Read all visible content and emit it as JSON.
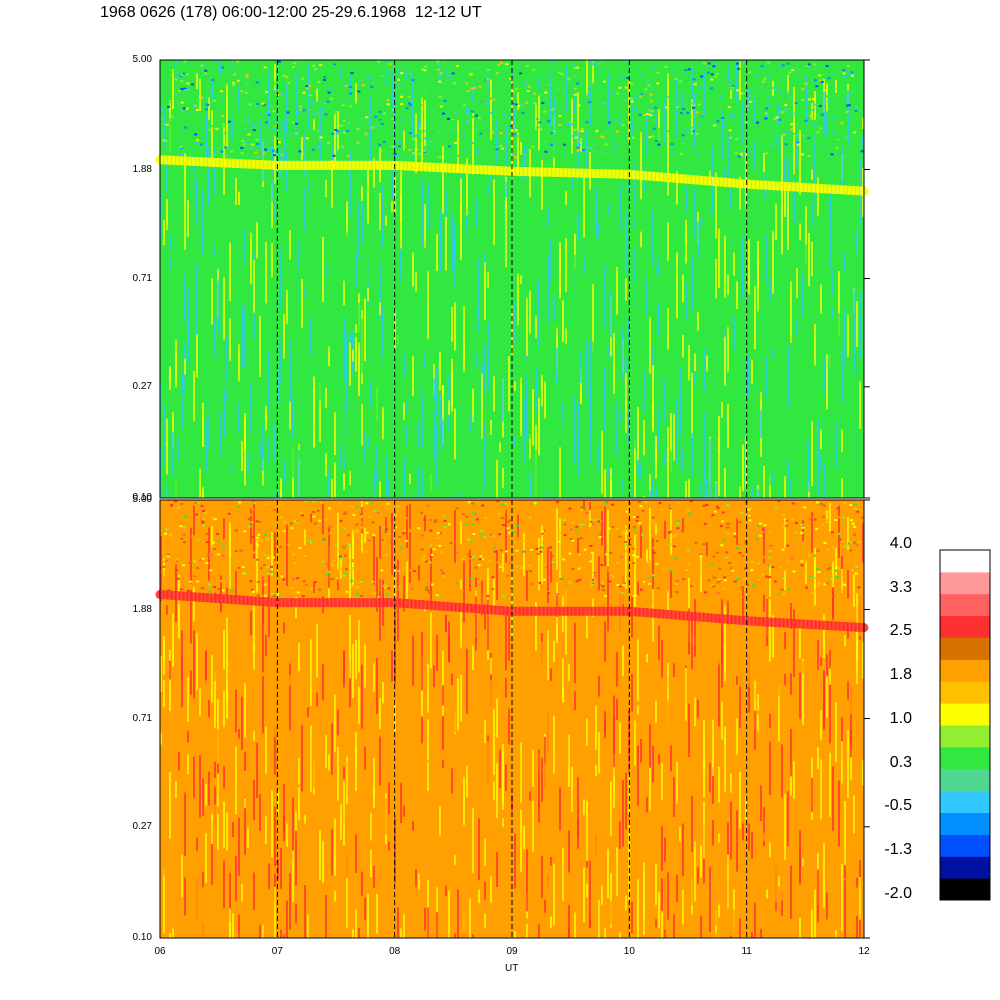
{
  "chart_data": {
    "type": "heatmap",
    "title": "1968 0626 (178) 06:00-12:00 25-29.6.1968  12-12 UT",
    "xlabel": "UT",
    "x_ticks": [
      "06",
      "07",
      "08",
      "09",
      "10",
      "11",
      "12"
    ],
    "x_range": [
      6,
      12
    ],
    "panels": [
      {
        "name": "upper",
        "y_ticks": [
          "0.10",
          "0.27",
          "0.71",
          "1.88",
          "5.00"
        ],
        "ylim": [
          0.1,
          5.0
        ],
        "y_scale": "log",
        "dominant_levels": [
          0.3,
          1.0,
          -0.5
        ],
        "band_ridge": [
          {
            "x": 6.0,
            "y": 2.05,
            "level": 1.0
          },
          {
            "x": 7.0,
            "y": 1.95,
            "level": 1.0
          },
          {
            "x": 8.0,
            "y": 1.95,
            "level": 1.0
          },
          {
            "x": 9.0,
            "y": 1.85,
            "level": 1.0
          },
          {
            "x": 10.0,
            "y": 1.8,
            "level": 1.0
          },
          {
            "x": 11.0,
            "y": 1.65,
            "level": 1.0
          },
          {
            "x": 12.0,
            "y": 1.55,
            "level": 1.0
          }
        ]
      },
      {
        "name": "lower",
        "y_ticks": [
          "0.10",
          "0.27",
          "0.71",
          "1.88",
          "5.00"
        ],
        "ylim": [
          0.1,
          5.0
        ],
        "y_scale": "log",
        "dominant_levels": [
          1.8,
          1.0,
          2.5
        ],
        "band_ridge": [
          {
            "x": 6.0,
            "y": 2.15,
            "level": 2.5
          },
          {
            "x": 7.0,
            "y": 2.0,
            "level": 2.5
          },
          {
            "x": 8.0,
            "y": 2.0,
            "level": 2.5
          },
          {
            "x": 9.0,
            "y": 1.85,
            "level": 2.5
          },
          {
            "x": 10.0,
            "y": 1.85,
            "level": 2.5
          },
          {
            "x": 11.0,
            "y": 1.7,
            "level": 2.5
          },
          {
            "x": 12.0,
            "y": 1.6,
            "level": 2.5
          }
        ]
      }
    ],
    "colorbar": {
      "labels": [
        "4.0",
        "3.3",
        "2.5",
        "1.8",
        "1.0",
        "0.3",
        "-0.5",
        "-1.3",
        "-2.0"
      ],
      "colors": [
        "#000000",
        "#0010a0",
        "#0050ff",
        "#0090ff",
        "#30c8ff",
        "#50d890",
        "#30e840",
        "#90f030",
        "#ffff00",
        "#ffc000",
        "#ffa000",
        "#d87000",
        "#ff3030",
        "#ff6060",
        "#ff9898",
        "#ffffff"
      ]
    },
    "grid": "vertical dashed lines at hourly ticks",
    "legend": "colorbar right"
  }
}
